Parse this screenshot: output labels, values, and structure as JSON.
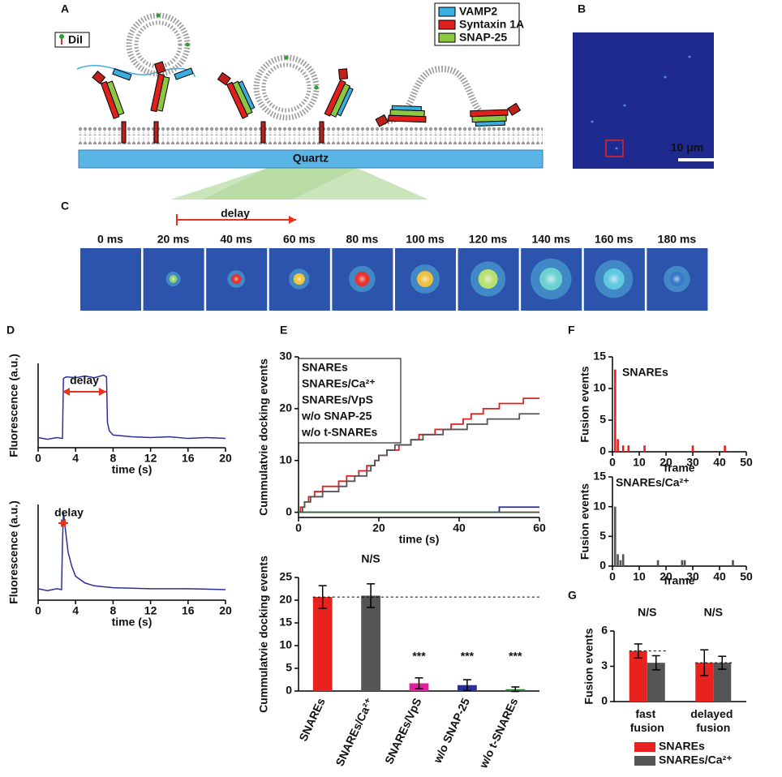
{
  "panel_labels": [
    "A",
    "B",
    "C",
    "D",
    "E",
    "F",
    "G"
  ],
  "diagram": {
    "legend": [
      {
        "name": "VAMP2",
        "color": "#3aaee0"
      },
      {
        "name": "Syntaxin 1A",
        "color": "#e0201c"
      },
      {
        "name": "SNAP-25",
        "color": "#8dc63f"
      }
    ],
    "dye": "DiI",
    "substrate": "Quartz",
    "scale_bar": "10 μm",
    "delay": "delay",
    "frames": [
      "0 ms",
      "20 ms",
      "40 ms",
      "60 ms",
      "80 ms",
      "100 ms",
      "120 ms",
      "140 ms",
      "160 ms",
      "180 ms"
    ]
  },
  "chart_data": [
    {
      "type": "line",
      "ylabel": "Fluorescence (a.u.)",
      "xlabel": "time (s)",
      "annotation": "delay",
      "color": "#2b2f9a",
      "x": [
        0,
        1,
        2,
        2.6,
        2.7,
        3,
        4,
        5,
        6,
        7,
        7.3,
        7.4,
        7.6,
        8,
        10,
        12,
        14,
        16,
        18,
        20
      ],
      "values": [
        0.12,
        0.1,
        0.12,
        0.11,
        0.82,
        0.84,
        0.83,
        0.85,
        0.83,
        0.86,
        0.84,
        0.3,
        0.2,
        0.15,
        0.13,
        0.12,
        0.13,
        0.11,
        0.12,
        0.11
      ],
      "xlim": [
        0,
        20
      ],
      "xticks": [
        0,
        4,
        8,
        12,
        16,
        20
      ],
      "ylim": [
        0,
        1
      ]
    },
    {
      "type": "line",
      "ylabel": "Fluorescence (a.u.)",
      "xlabel": "time (s)",
      "annotation": "delay",
      "color": "#2b2f9a",
      "x": [
        0,
        1,
        2,
        2.5,
        2.6,
        2.7,
        2.9,
        3.2,
        3.6,
        4,
        5,
        6,
        8,
        12,
        16,
        20
      ],
      "values": [
        0.12,
        0.1,
        0.12,
        0.11,
        0.6,
        0.92,
        0.75,
        0.5,
        0.35,
        0.25,
        0.18,
        0.15,
        0.13,
        0.12,
        0.12,
        0.11
      ],
      "xlim": [
        0,
        20
      ],
      "xticks": [
        0,
        4,
        8,
        12,
        16,
        20
      ],
      "ylim": [
        0,
        1
      ]
    },
    {
      "type": "line",
      "step": "post",
      "legend": "upper left",
      "ylabel": "Cummulatvie docking events",
      "xlabel": "time (s)",
      "xlim": [
        0,
        60
      ],
      "xticks": [
        0,
        20,
        40,
        60
      ],
      "ylim": [
        -1,
        30
      ],
      "yticks": [
        0,
        10,
        20,
        30
      ],
      "series": [
        {
          "name": "SNAREs",
          "color": "#e0201c",
          "x": [
            0,
            0.5,
            1.5,
            2.5,
            4,
            6,
            10,
            12,
            15,
            17,
            19,
            20,
            22,
            25,
            28,
            30,
            34,
            38,
            41,
            43,
            46,
            50,
            56,
            60
          ],
          "values": [
            0,
            1,
            2,
            3,
            4,
            5,
            6,
            7,
            8,
            9,
            10,
            11,
            12,
            13,
            14,
            15,
            16,
            17,
            18,
            19,
            20,
            21,
            22,
            22
          ]
        },
        {
          "name": "SNAREs/Ca²⁺",
          "color": "#555555",
          "x": [
            0,
            1,
            1.5,
            3,
            6,
            10,
            12,
            14,
            17,
            18,
            19,
            20,
            22,
            24,
            28,
            31,
            36,
            42,
            47,
            55,
            60
          ],
          "values": [
            0,
            1,
            2,
            3,
            4,
            5,
            6,
            7,
            8,
            9,
            10,
            11,
            12,
            13,
            14,
            15,
            16,
            17,
            18,
            19,
            19
          ]
        },
        {
          "name": "SNAREs/VpS",
          "color": "#e0209c",
          "x": [
            0,
            60
          ],
          "values": [
            0,
            0
          ]
        },
        {
          "name": "w/o SNAP-25",
          "color": "#2b2f9a",
          "x": [
            0,
            50,
            60
          ],
          "values": [
            0,
            1,
            1
          ]
        },
        {
          "name": "w/o t-SNAREs",
          "color": "#2e6b2e",
          "x": [
            0,
            60
          ],
          "values": [
            0,
            0
          ]
        }
      ]
    },
    {
      "type": "bar",
      "ylabel": "Cummulatvie docking events",
      "reference_line": "across",
      "categories": [
        "SNAREs",
        "SNAREs/Ca²⁺",
        "SNAREs/VpS",
        "w/o SNAP-25",
        "w/o t-SNAREs"
      ],
      "values": [
        20.7,
        21,
        1.7,
        1.3,
        0.4
      ],
      "errors": [
        2.5,
        2.6,
        1.2,
        1.2,
        0.5
      ],
      "colors": [
        "#e8231f",
        "#555555",
        "#e0209c",
        "#2b2f9a",
        "#2e7d32"
      ],
      "annotations": [
        null,
        "N/S",
        "***",
        "***",
        "***"
      ],
      "ylim": [
        0,
        25
      ],
      "yticks": [
        0,
        5,
        10,
        15,
        20,
        25
      ]
    },
    {
      "type": "bar",
      "label": "SNAREs",
      "ylabel": "Fusion events",
      "xlabel": "frame",
      "color": "#e8231f",
      "x": [
        1,
        2,
        4,
        6,
        12,
        30,
        42
      ],
      "values": [
        13,
        2,
        1,
        1,
        1,
        1,
        1
      ],
      "xlim": [
        0,
        50
      ],
      "xticks": [
        0,
        10,
        20,
        30,
        40,
        50
      ],
      "ylim": [
        0,
        15
      ],
      "yticks": [
        0,
        5,
        10,
        15
      ]
    },
    {
      "type": "bar",
      "label": "SNAREs/Ca²⁺",
      "ylabel": "Fusion events",
      "xlabel": "frame",
      "color": "#555555",
      "x": [
        1,
        2,
        3,
        4,
        17,
        26,
        27,
        45
      ],
      "values": [
        10,
        2,
        1,
        2,
        1,
        1,
        1,
        1
      ],
      "xlim": [
        0,
        50
      ],
      "xticks": [
        0,
        10,
        20,
        30,
        40,
        50
      ],
      "ylim": [
        0,
        15
      ],
      "yticks": [
        0,
        5,
        10,
        15
      ]
    },
    {
      "type": "bar",
      "ylabel": "Fusion events",
      "legend": "bottom",
      "reference_line": "per_group",
      "categories": [
        "fast fusion",
        "delayed fusion"
      ],
      "annotations": [
        "N/S",
        "N/S"
      ],
      "series": [
        {
          "name": "SNAREs",
          "color": "#e8231f",
          "values": [
            4.3,
            3.3
          ],
          "errors": [
            0.6,
            1.1
          ]
        },
        {
          "name": "SNAREs/Ca²⁺",
          "color": "#555555",
          "values": [
            3.3,
            3.3
          ],
          "errors": [
            0.6,
            0.55
          ]
        }
      ],
      "ylim": [
        0,
        6
      ],
      "yticks": [
        0,
        3,
        6
      ]
    }
  ]
}
